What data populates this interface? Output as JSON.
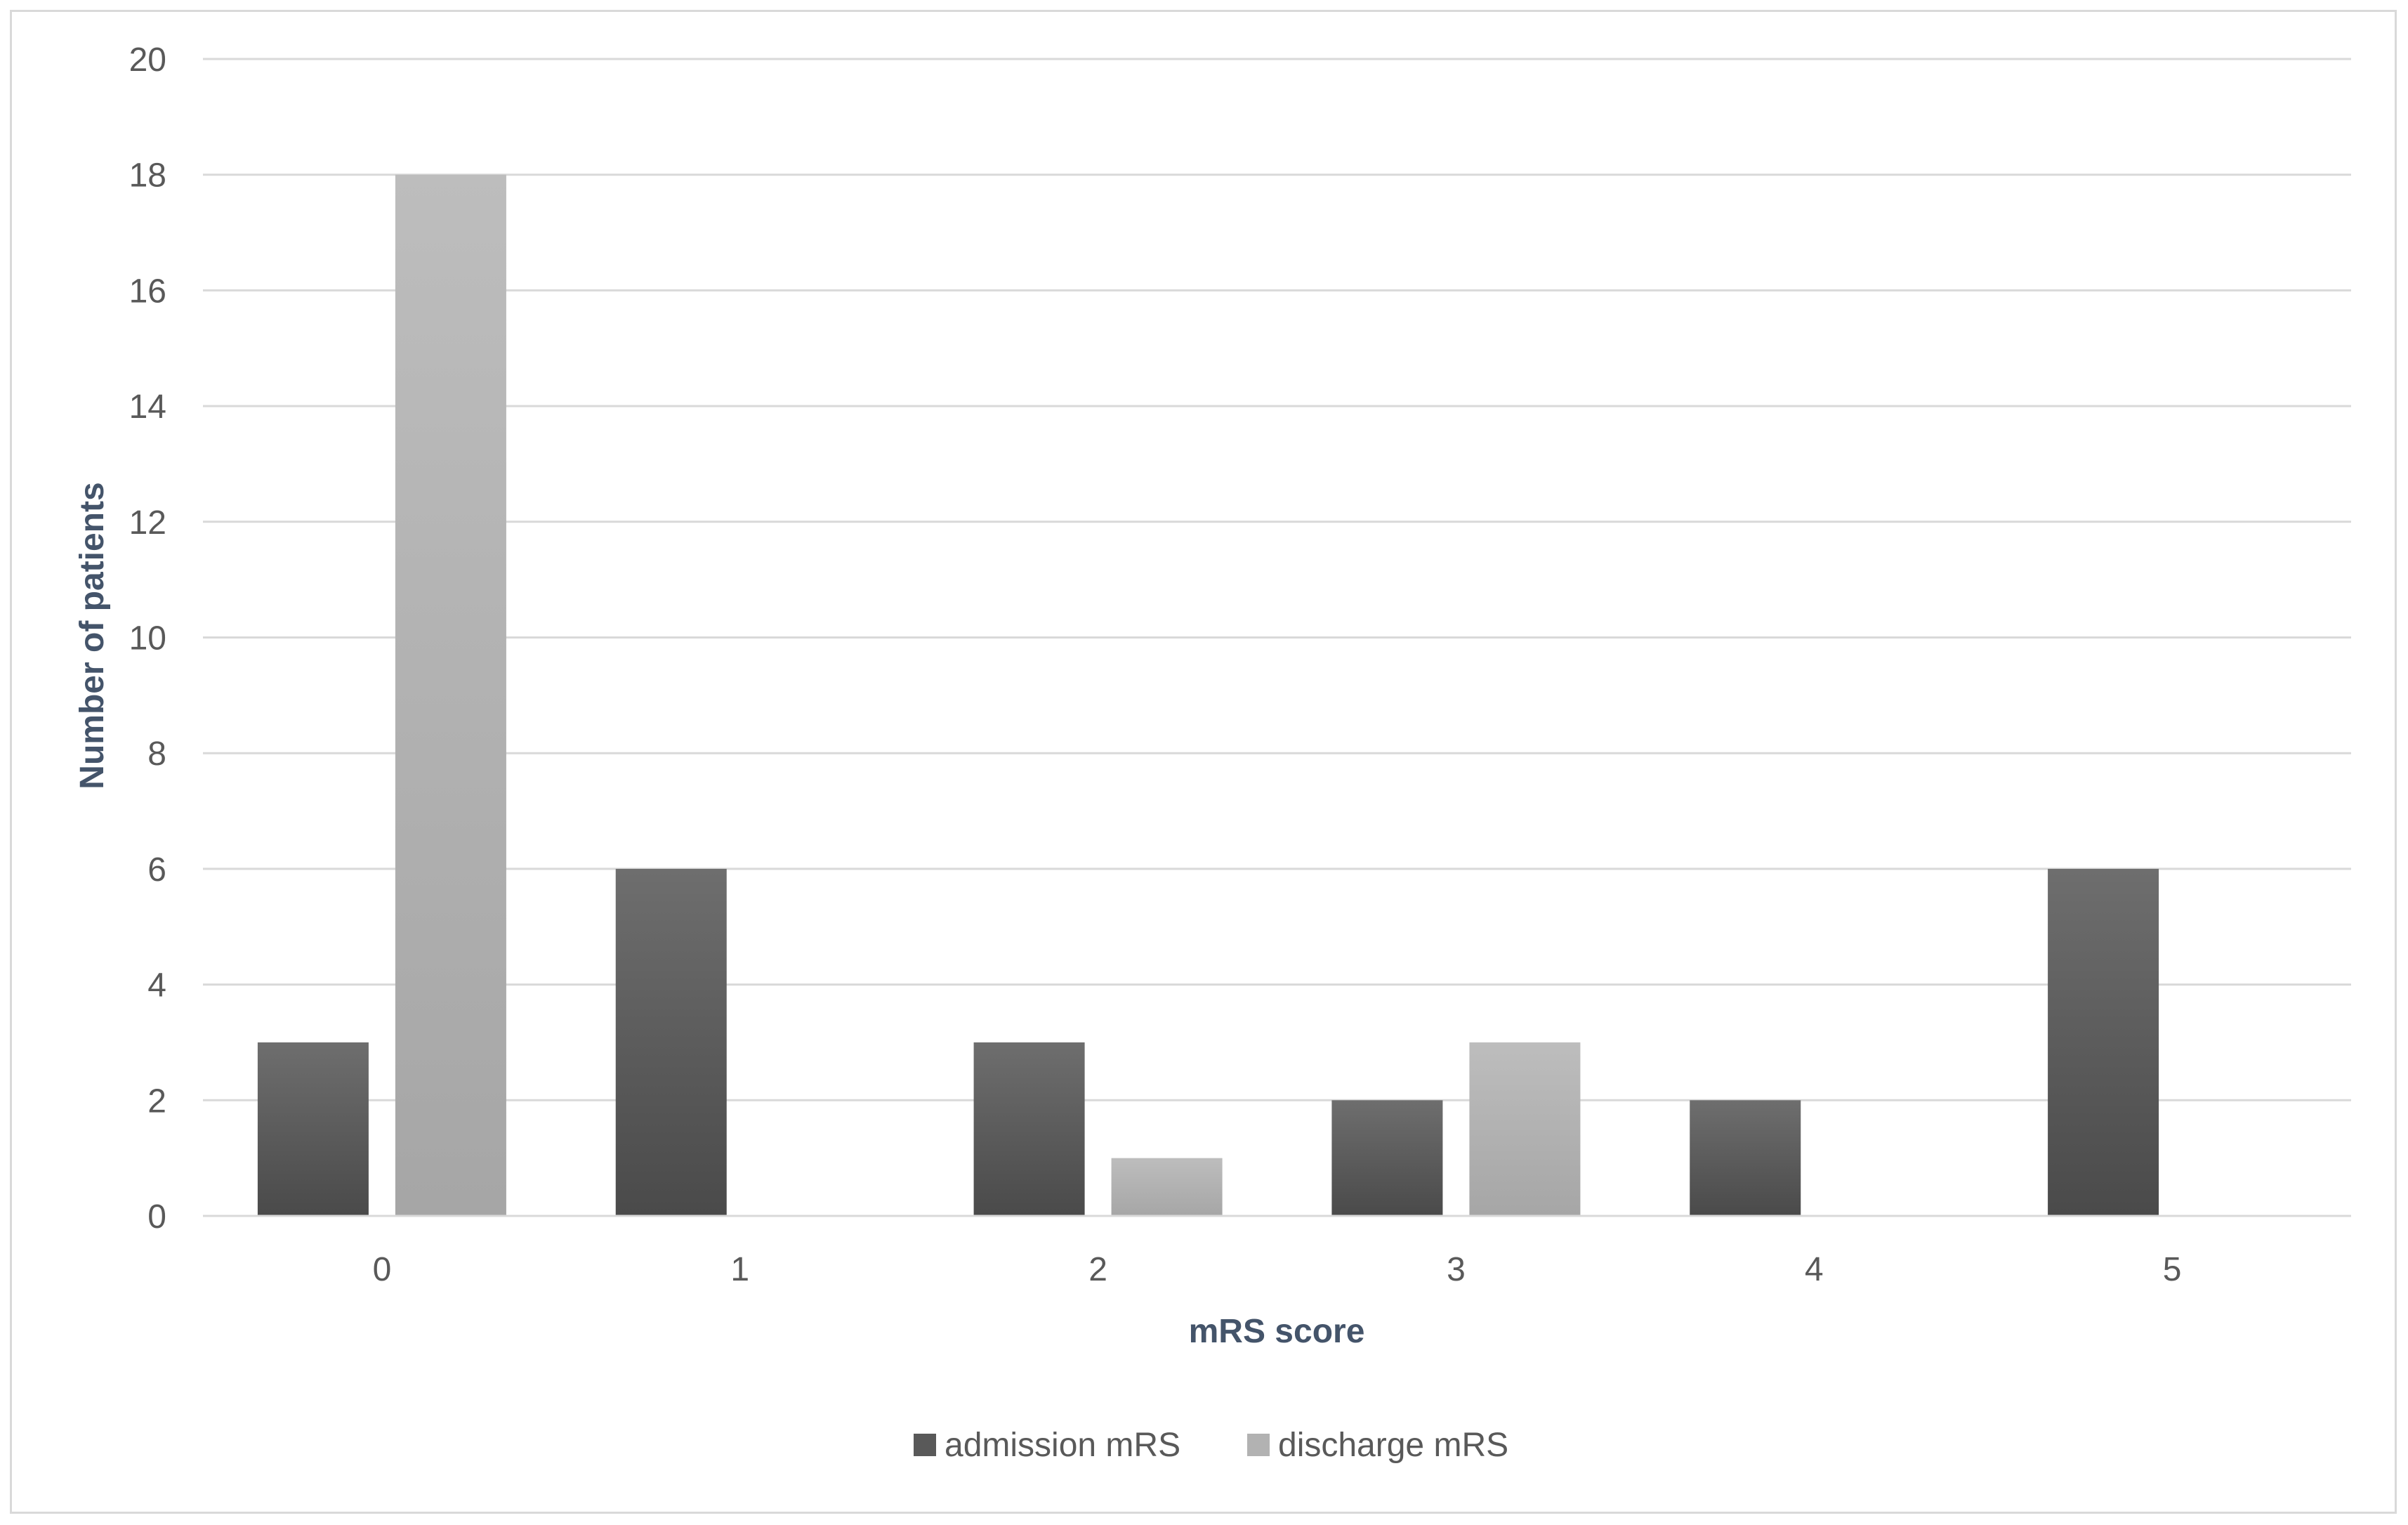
{
  "chart_data": {
    "type": "bar",
    "categories": [
      "0",
      "1",
      "2",
      "3",
      "4",
      "5"
    ],
    "series": [
      {
        "name": "admission mRS",
        "values": [
          3,
          6,
          3,
          2,
          2,
          6
        ],
        "color": "#595959"
      },
      {
        "name": "discharge mRS",
        "values": [
          18,
          0,
          1,
          3,
          0,
          0
        ],
        "color": "#b2b2b2"
      }
    ],
    "xlabel": "mRS score",
    "ylabel": "Number of patients",
    "ylim": [
      0,
      20
    ],
    "yticks": [
      "0",
      "2",
      "4",
      "6",
      "8",
      "10",
      "12",
      "14",
      "16",
      "18",
      "20"
    ],
    "grid": true,
    "legend_position": "bottom"
  }
}
